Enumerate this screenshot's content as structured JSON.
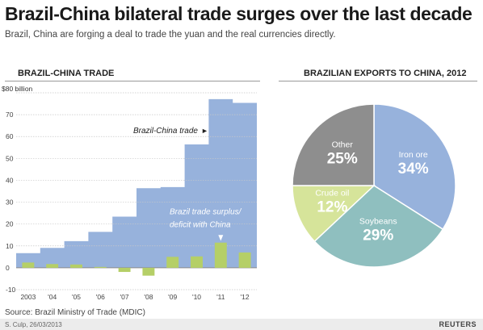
{
  "header": {
    "title": "Brazil-China bilateral trade surges over the last decade",
    "subtitle": "Brazil, China are forging a deal to trade the yuan and the real currencies directly."
  },
  "left_panel": {
    "title": "BRAZIL-CHINA TRADE",
    "series_label_trade": "Brazil-China trade",
    "series_label_surplus": "Brazil trade surplus/ deficit with China",
    "series_label_surplus_lines": [
      "Brazil trade surplus/",
      "deficit with China"
    ],
    "arrow_glyph": "►"
  },
  "right_panel": {
    "title": "BRAZILIAN EXPORTS TO CHINA, 2012"
  },
  "footer": {
    "source": "Source: Brazil Ministry of Trade (MDIC)",
    "credit": "S. Culp, 26/03/2013",
    "brand": "REUTERS"
  },
  "colors": {
    "trade": "#97b2dc",
    "surplus": "#b5cf67",
    "iron_ore": "#97b2dc",
    "soybeans": "#8fbfbf",
    "crude_oil": "#d6e49a",
    "other": "#8e8e8e"
  },
  "chart_data": [
    {
      "type": "area",
      "title": "BRAZIL-CHINA TRADE",
      "ylabel": "$80 billion",
      "ylim": [
        -10,
        80
      ],
      "yticks": [
        -10,
        0,
        10,
        20,
        30,
        40,
        50,
        60,
        70
      ],
      "ytick_labels": [
        "-10",
        "0",
        "10",
        "20",
        "30",
        "40",
        "50",
        "60",
        "70"
      ],
      "top_tick_label": "$80 billion",
      "grid": true,
      "categories": [
        "2003",
        "'04",
        "'05",
        "'06",
        "'07",
        "'08",
        "'09",
        "'10",
        "'11",
        "'12"
      ],
      "series": [
        {
          "name": "Brazil-China trade",
          "type": "area-step",
          "values": [
            6.7,
            9.1,
            12.2,
            16.4,
            23.4,
            36.4,
            36.9,
            56.4,
            77.1,
            75.4
          ]
        },
        {
          "name": "Brazil trade surplus/ deficit with China",
          "type": "bar",
          "values": [
            2.4,
            1.7,
            1.5,
            0.4,
            -1.9,
            -3.6,
            5.0,
            5.2,
            11.5,
            7.0
          ]
        }
      ]
    },
    {
      "type": "pie",
      "title": "BRAZILIAN EXPORTS TO CHINA, 2012",
      "labels": [
        "Iron ore",
        "Soybeans",
        "Crude oil",
        "Other"
      ],
      "values": [
        34,
        29,
        12,
        25
      ],
      "value_labels": [
        "34%",
        "29%",
        "12%",
        "25%"
      ],
      "colors": [
        "#97b2dc",
        "#8fbfbf",
        "#d6e49a",
        "#8e8e8e"
      ]
    }
  ]
}
